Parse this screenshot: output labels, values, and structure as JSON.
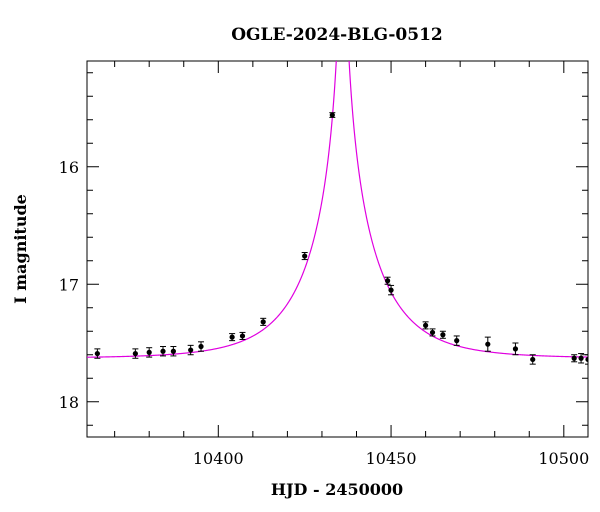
{
  "chart_data": {
    "type": "scatter",
    "title": "OGLE-2024-BLG-0512",
    "xlabel": "HJD - 2450000",
    "ylabel": "I magnitude",
    "xlim": [
      10362,
      10507
    ],
    "ylim": [
      18.3,
      15.1
    ],
    "y_inverted": true,
    "xticks": [
      10400,
      10450,
      10500
    ],
    "xtick_labels": [
      "10400",
      "10450",
      "10500"
    ],
    "yticks": [
      16,
      17,
      18
    ],
    "ytick_labels": [
      "16",
      "17",
      "18"
    ],
    "grid": false,
    "model_color": "#e000e0",
    "point_color": "#000000",
    "model": {
      "name": "microlensing model",
      "t0": 10436,
      "u0": 0.03,
      "tE": 20,
      "baseline": 17.63
    },
    "series": [
      {
        "name": "data",
        "points": [
          {
            "x": 10365,
            "y": 17.59,
            "err": 0.04
          },
          {
            "x": 10376,
            "y": 17.59,
            "err": 0.04
          },
          {
            "x": 10380,
            "y": 17.58,
            "err": 0.04
          },
          {
            "x": 10384,
            "y": 17.57,
            "err": 0.04
          },
          {
            "x": 10387,
            "y": 17.57,
            "err": 0.04
          },
          {
            "x": 10392,
            "y": 17.56,
            "err": 0.04
          },
          {
            "x": 10395,
            "y": 17.53,
            "err": 0.04
          },
          {
            "x": 10404,
            "y": 17.45,
            "err": 0.03
          },
          {
            "x": 10407,
            "y": 17.44,
            "err": 0.03
          },
          {
            "x": 10413,
            "y": 17.32,
            "err": 0.03
          },
          {
            "x": 10425,
            "y": 16.76,
            "err": 0.03
          },
          {
            "x": 10433,
            "y": 15.56,
            "err": 0.02
          },
          {
            "x": 10449,
            "y": 16.97,
            "err": 0.03
          },
          {
            "x": 10450,
            "y": 17.05,
            "err": 0.04
          },
          {
            "x": 10460,
            "y": 17.35,
            "err": 0.03
          },
          {
            "x": 10462,
            "y": 17.41,
            "err": 0.03
          },
          {
            "x": 10465,
            "y": 17.43,
            "err": 0.03
          },
          {
            "x": 10469,
            "y": 17.48,
            "err": 0.04
          },
          {
            "x": 10478,
            "y": 17.51,
            "err": 0.06
          },
          {
            "x": 10486,
            "y": 17.55,
            "err": 0.05
          },
          {
            "x": 10491,
            "y": 17.64,
            "err": 0.04
          },
          {
            "x": 10503,
            "y": 17.63,
            "err": 0.03
          },
          {
            "x": 10505,
            "y": 17.63,
            "err": 0.04
          },
          {
            "x": 10507,
            "y": 17.64,
            "err": 0.04
          }
        ]
      }
    ]
  }
}
